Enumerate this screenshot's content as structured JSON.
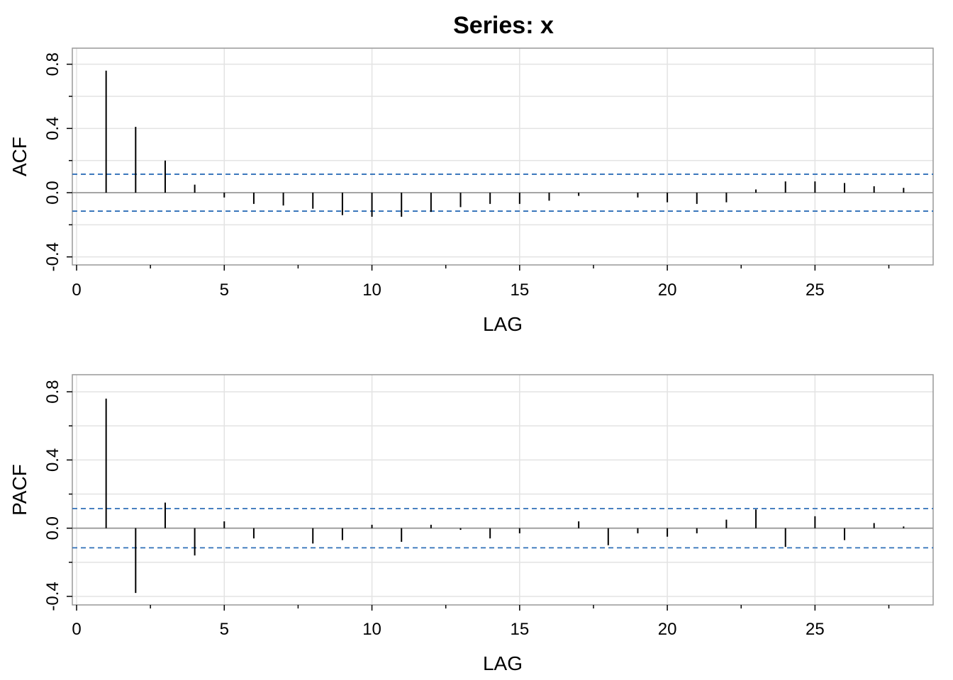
{
  "title": "Series:  x",
  "chart_data": [
    {
      "type": "bar",
      "ylabel": "ACF",
      "xlabel": "LAG",
      "xlim": [
        0,
        29
      ],
      "ylim": [
        -0.45,
        0.9
      ],
      "xticks": [
        0,
        5,
        10,
        15,
        20,
        25
      ],
      "yticks": [
        -0.4,
        0.0,
        0.4,
        0.8
      ],
      "ytick_labels": [
        "-0.4",
        "0.0",
        "0.4",
        "0.8"
      ],
      "grid": true,
      "conf_limit": 0.115,
      "lags": [
        1,
        2,
        3,
        4,
        5,
        6,
        7,
        8,
        9,
        10,
        11,
        12,
        13,
        14,
        15,
        16,
        17,
        18,
        19,
        20,
        21,
        22,
        23,
        24,
        25,
        26,
        27,
        28
      ],
      "values": [
        0.76,
        0.41,
        0.2,
        0.05,
        -0.03,
        -0.07,
        -0.08,
        -0.1,
        -0.14,
        -0.15,
        -0.15,
        -0.12,
        -0.09,
        -0.07,
        -0.07,
        -0.05,
        -0.02,
        0.0,
        -0.03,
        -0.06,
        -0.07,
        -0.06,
        0.02,
        0.07,
        0.07,
        0.06,
        0.04,
        0.03
      ]
    },
    {
      "type": "bar",
      "ylabel": "PACF",
      "xlabel": "LAG",
      "xlim": [
        0,
        29
      ],
      "ylim": [
        -0.45,
        0.9
      ],
      "xticks": [
        0,
        5,
        10,
        15,
        20,
        25
      ],
      "yticks": [
        -0.4,
        0.0,
        0.4,
        0.8
      ],
      "ytick_labels": [
        "-0.4",
        "0.0",
        "0.4",
        "0.8"
      ],
      "grid": true,
      "conf_limit": 0.115,
      "lags": [
        1,
        2,
        3,
        4,
        5,
        6,
        7,
        8,
        9,
        10,
        11,
        12,
        13,
        14,
        15,
        16,
        17,
        18,
        19,
        20,
        21,
        22,
        23,
        24,
        25,
        26,
        27,
        28
      ],
      "values": [
        0.76,
        -0.38,
        0.15,
        -0.16,
        0.04,
        -0.06,
        0.0,
        -0.09,
        -0.07,
        0.02,
        -0.08,
        0.02,
        -0.01,
        -0.06,
        -0.03,
        0.0,
        0.04,
        -0.1,
        -0.03,
        -0.05,
        -0.03,
        0.05,
        0.11,
        -0.11,
        0.07,
        -0.07,
        0.03,
        0.01
      ]
    }
  ]
}
